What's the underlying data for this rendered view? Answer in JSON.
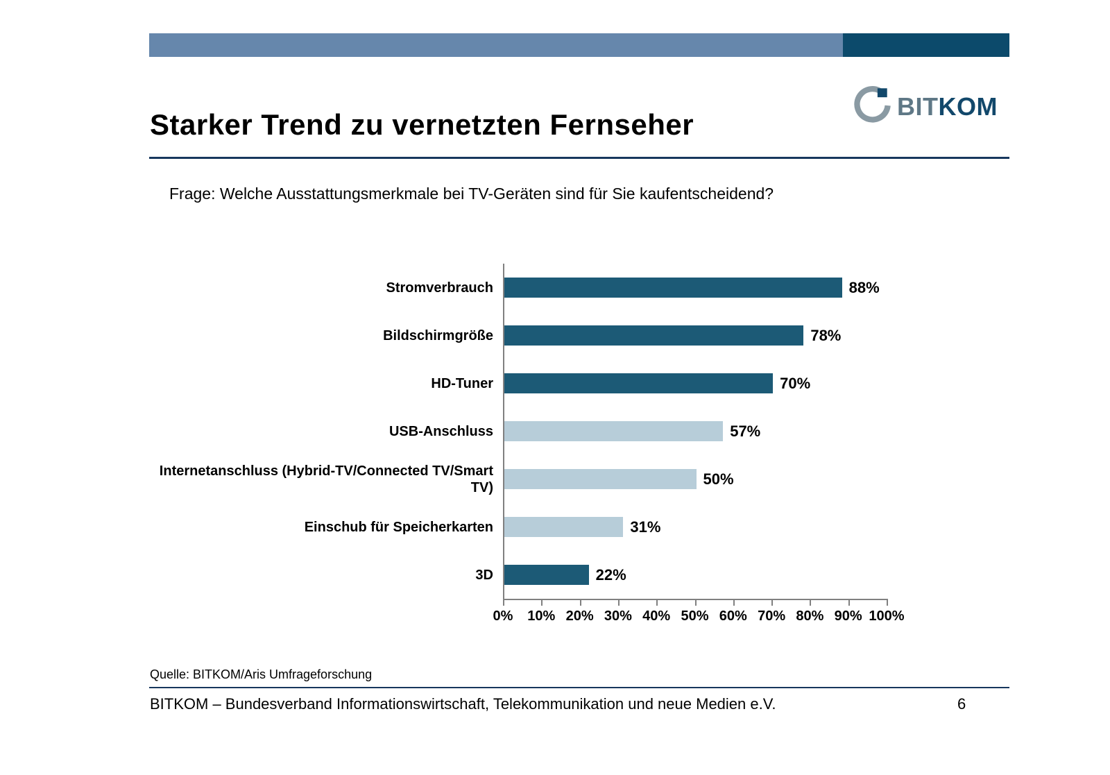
{
  "slide": {
    "title": "Starker Trend zu vernetzten Fernseher",
    "question": "Frage: Welche Ausstattungsmerkmale bei TV-Geräten sind für Sie kaufentscheidend?",
    "source": "Quelle: BITKOM/Aris Umfrageforschung",
    "footer": "BITKOM – Bundesverband Informationswirtschaft, Telekommunikation und neue Medien e.V.",
    "page_number": "6"
  },
  "logo": {
    "text_light": "BIT",
    "text_bold": "KOM"
  },
  "colors": {
    "band_light": "#6687ac",
    "band_dark": "#0c4a6b",
    "rule_navy": "#17375d",
    "bar_dark": "#1c5a76",
    "bar_light": "#b7cdd9",
    "axis_gray": "#808080",
    "logo_gray": "#8a9aa3",
    "logo_dark": "#12486b"
  },
  "chart_data": {
    "type": "bar",
    "orientation": "horizontal",
    "title": "",
    "xlabel": "",
    "ylabel": "",
    "xlim": [
      0,
      100
    ],
    "grid": false,
    "legend": "none",
    "categories": [
      "Stromverbrauch",
      "Bildschirmgröße",
      "HD-Tuner",
      "USB-Anschluss",
      "Internetanschluss (Hybrid-TV/Connected TV/Smart TV)",
      "Einschub für Speicherkarten",
      "3D"
    ],
    "values": [
      88,
      78,
      70,
      57,
      50,
      31,
      22
    ],
    "value_labels": [
      "88%",
      "78%",
      "70%",
      "57%",
      "50%",
      "31%",
      "22%"
    ],
    "bar_color_keys": [
      "dark",
      "dark",
      "dark",
      "light",
      "light",
      "light",
      "dark"
    ],
    "x_ticks": [
      "0%",
      "10%",
      "20%",
      "30%",
      "40%",
      "50%",
      "60%",
      "70%",
      "80%",
      "90%",
      "100%"
    ]
  }
}
